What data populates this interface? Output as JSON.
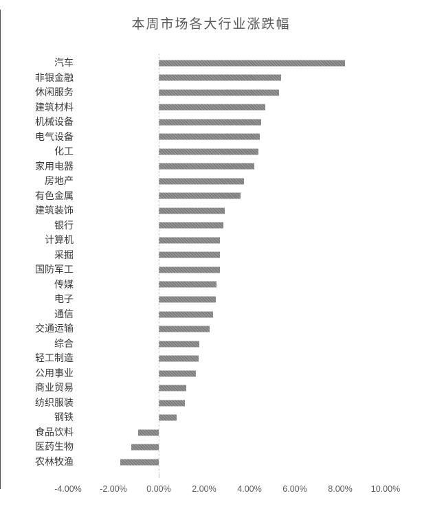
{
  "chart_data": {
    "type": "bar",
    "orientation": "horizontal",
    "title": "本周市场各大行业涨跌幅",
    "categories": [
      "汽车",
      "非银金融",
      "休闲服务",
      "建筑材料",
      "机械设备",
      "电气设备",
      "化工",
      "家用电器",
      "房地产",
      "有色金属",
      "建筑装饰",
      "银行",
      "计算机",
      "采掘",
      "国防军工",
      "传媒",
      "电子",
      "通信",
      "交通运输",
      "综合",
      "轻工制造",
      "公用事业",
      "商业贸易",
      "纺织服装",
      "钢铁",
      "食品饮料",
      "医药生物",
      "农林牧渔"
    ],
    "values": [
      8.2,
      5.4,
      5.3,
      4.7,
      4.5,
      4.45,
      4.4,
      4.2,
      3.75,
      3.6,
      2.9,
      2.85,
      2.7,
      2.7,
      2.7,
      2.55,
      2.5,
      2.4,
      2.25,
      1.8,
      1.75,
      1.65,
      1.2,
      1.15,
      0.8,
      -0.9,
      -1.2,
      -1.7
    ],
    "unit": "%",
    "xlabel": "",
    "ylabel": "",
    "xlim": [
      -4,
      10
    ],
    "x_tick_labels": [
      "-4.00%",
      "-2.00%",
      "0.00%",
      "2.00%",
      "4.00%",
      "6.00%",
      "8.00%",
      "10.00%"
    ],
    "x_tick_step": 2,
    "grid": false,
    "legend": "none",
    "bar_color": "#828282",
    "title_color": "#595959",
    "axis_label_color": "#595959",
    "category_label_color": "#3a3a3a"
  }
}
